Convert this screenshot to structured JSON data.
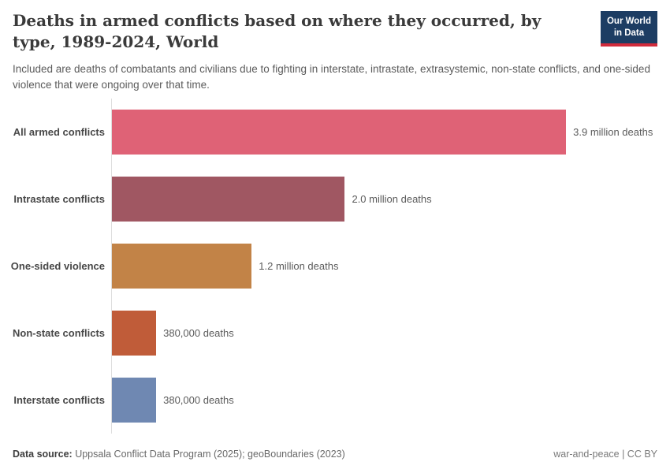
{
  "header": {
    "title": "Deaths in armed conflicts based on where they occurred, by type, 1989-2024, World",
    "subtitle": "Included are deaths of combatants and civilians due to fighting in interstate, intrastate, extrasystemic, non-state conflicts, and one-sided violence that were ongoing over that time.",
    "logo": {
      "line1": "Our World",
      "line2": "in Data",
      "bg_color": "#1d3d63",
      "accent_color": "#d12b3c"
    }
  },
  "chart_data": {
    "type": "bar",
    "orientation": "horizontal",
    "title": "Deaths in armed conflicts based on where they occurred, by type, 1989-2024, World",
    "xlabel": "",
    "ylabel": "",
    "grid": false,
    "legend": false,
    "xlim": [
      0,
      3900000
    ],
    "categories": [
      "All armed conflicts",
      "Intrastate conflicts",
      "One-sided violence",
      "Non-state conflicts",
      "Interstate conflicts"
    ],
    "values": [
      3900000,
      2000000,
      1200000,
      380000,
      380000
    ],
    "value_labels": [
      "3.9 million deaths",
      "2.0 million deaths",
      "1.2 million deaths",
      "380,000 deaths",
      "380,000 deaths"
    ],
    "bar_colors": [
      "#df6276",
      "#a05762",
      "#c28347",
      "#c05c39",
      "#6f88b2"
    ],
    "axis_line_color": "#dedede"
  },
  "footer": {
    "source_label": "Data source:",
    "source_text": " Uppsala Conflict Data Program (2025); geoBoundaries (2023)",
    "credit": "war-and-peace | CC BY"
  }
}
